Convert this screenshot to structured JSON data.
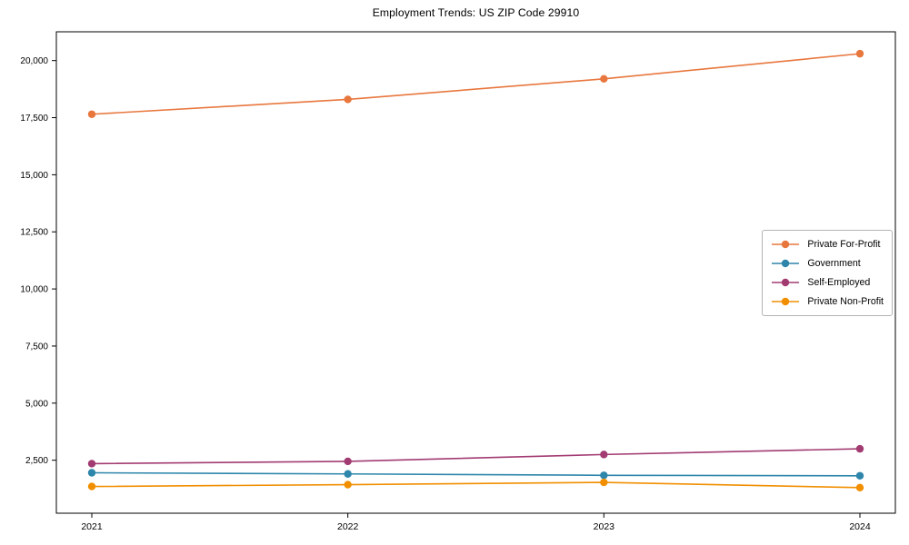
{
  "page": {
    "background": "#ffffff",
    "text_color": "#000000",
    "axis_color": "#000000",
    "legend_border_color": "#b3b3b3"
  },
  "chart_data": {
    "type": "line",
    "title": "Employment Trends: US ZIP Code 29910",
    "xlabel": "",
    "ylabel": "",
    "x": [
      "2021",
      "2022",
      "2023",
      "2024"
    ],
    "series": [
      {
        "name": "Private For-Profit",
        "color": "#E8773E",
        "marker": "circle",
        "values": [
          17650,
          18300,
          19200,
          20300
        ]
      },
      {
        "name": "Government",
        "color": "#2E86AB",
        "marker": "circle",
        "values": [
          1950,
          1900,
          1840,
          1820
        ]
      },
      {
        "name": "Self-Employed",
        "color": "#A23B72",
        "marker": "circle",
        "values": [
          2350,
          2450,
          2750,
          3000
        ]
      },
      {
        "name": "Private Non-Profit",
        "color": "#F18F01",
        "marker": "circle",
        "values": [
          1350,
          1430,
          1530,
          1300
        ]
      }
    ],
    "yticks": [
      2500,
      5000,
      7500,
      10000,
      12500,
      15000,
      17500,
      20000
    ],
    "ylim": [
      180,
      21260
    ],
    "grid": false,
    "legend_position": "center-right",
    "frame": "full-box"
  }
}
